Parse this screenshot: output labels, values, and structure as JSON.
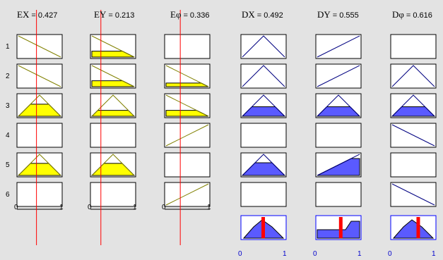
{
  "headers": {
    "EX": {
      "name": "EX",
      "eq": "= 0.427"
    },
    "EY": {
      "name": "EY",
      "eq": "= 0.213"
    },
    "Ephi": {
      "name": "Eφ",
      "eq": "= 0.336"
    },
    "DX": {
      "name": "DX",
      "eq": "= 0.492"
    },
    "DY": {
      "name": "DY",
      "eq": "= 0.555"
    },
    "Dphi": {
      "name": "Dφ",
      "eq": "= 0.616"
    }
  },
  "rows": [
    "1",
    "2",
    "3",
    "4",
    "5",
    "6"
  ],
  "ticks": {
    "zero": "0",
    "one": "1"
  },
  "inputs": [
    {
      "name": "EX",
      "value": 0.427,
      "mf": [
        "z",
        "z",
        "tri",
        "none",
        "tri",
        "none"
      ],
      "fire": [
        0,
        0,
        0.57,
        0,
        0.57,
        0
      ]
    },
    {
      "name": "EY",
      "value": 0.213,
      "mf": [
        "z",
        "z",
        "tri",
        "none",
        "tri",
        "none"
      ],
      "fire": [
        0.28,
        0.28,
        0.28,
        0,
        0.57,
        0
      ]
    },
    {
      "name": "Eφ",
      "value": 0.336,
      "mf": [
        "none",
        "z",
        "z",
        "s",
        "none",
        "s"
      ],
      "fire": [
        0,
        0.17,
        0.28,
        0,
        0,
        0
      ]
    }
  ],
  "outputs": [
    {
      "name": "DX",
      "value": 0.492,
      "mf": [
        "tri",
        "tri",
        "tri",
        "none",
        "tri",
        "none"
      ],
      "fire": [
        0,
        0,
        0.45,
        0,
        0.6,
        0
      ]
    },
    {
      "name": "DY",
      "value": 0.555,
      "mf": [
        "s",
        "s",
        "tri",
        "none",
        "s",
        "none"
      ],
      "fire": [
        0,
        0,
        0.45,
        0,
        0.8,
        0
      ]
    },
    {
      "name": "Dφ",
      "value": 0.616,
      "mf": [
        "none",
        "tri",
        "tri",
        "z",
        "none",
        "z"
      ],
      "fire": [
        0,
        0,
        0.45,
        0,
        0,
        0
      ]
    }
  ],
  "aggregate": [
    {
      "name": "DX",
      "value": 0.492,
      "shape": "trap"
    },
    {
      "name": "DY",
      "value": 0.555,
      "shape": "twin"
    },
    {
      "name": "Dφ",
      "value": 0.616,
      "shape": "trap"
    }
  ],
  "colors": {
    "input_fill": "#ffff00",
    "output_fill": "#5a5aff",
    "input_line": "#808000",
    "output_line": "#000080",
    "value_line": "#ff0000",
    "agg_border": "#0000ff",
    "value_bar": "#ff0000"
  }
}
